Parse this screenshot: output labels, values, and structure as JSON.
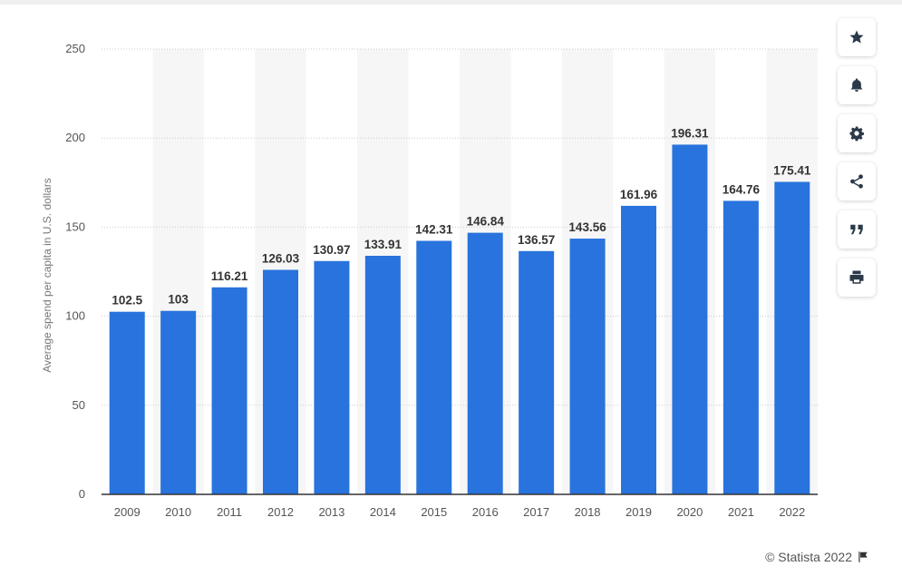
{
  "chart_data": {
    "type": "bar",
    "title": "",
    "xlabel": "",
    "ylabel": "Average spend per capita in U.S. dollars",
    "categories": [
      "2009",
      "2010",
      "2011",
      "2012",
      "2013",
      "2014",
      "2015",
      "2016",
      "2017",
      "2018",
      "2019",
      "2020",
      "2021",
      "2022"
    ],
    "values": [
      102.5,
      103,
      116.21,
      126.03,
      130.97,
      133.91,
      142.31,
      146.84,
      136.57,
      143.56,
      161.96,
      196.31,
      164.76,
      175.41
    ],
    "value_labels": [
      "102.5",
      "103",
      "116.21",
      "126.03",
      "130.97",
      "133.91",
      "142.31",
      "146.84",
      "136.57",
      "143.56",
      "161.96",
      "196.31",
      "164.76",
      "175.41"
    ],
    "ylim": [
      0,
      250
    ],
    "yticks": [
      0,
      50,
      100,
      150,
      200,
      250
    ],
    "grid": true,
    "bar_color": "#2873dd",
    "band_color": "#f6f6f6"
  },
  "toolbar": {
    "items": [
      {
        "icon": "star-icon",
        "name": "bookmark-button"
      },
      {
        "icon": "bell-icon",
        "name": "notification-button"
      },
      {
        "icon": "gear-icon",
        "name": "settings-button"
      },
      {
        "icon": "share-icon",
        "name": "share-button"
      },
      {
        "icon": "quote-icon",
        "name": "cite-button"
      },
      {
        "icon": "print-icon",
        "name": "print-button"
      }
    ]
  },
  "footer": {
    "credit": "© Statista 2022",
    "flag_icon": "flag-icon"
  }
}
